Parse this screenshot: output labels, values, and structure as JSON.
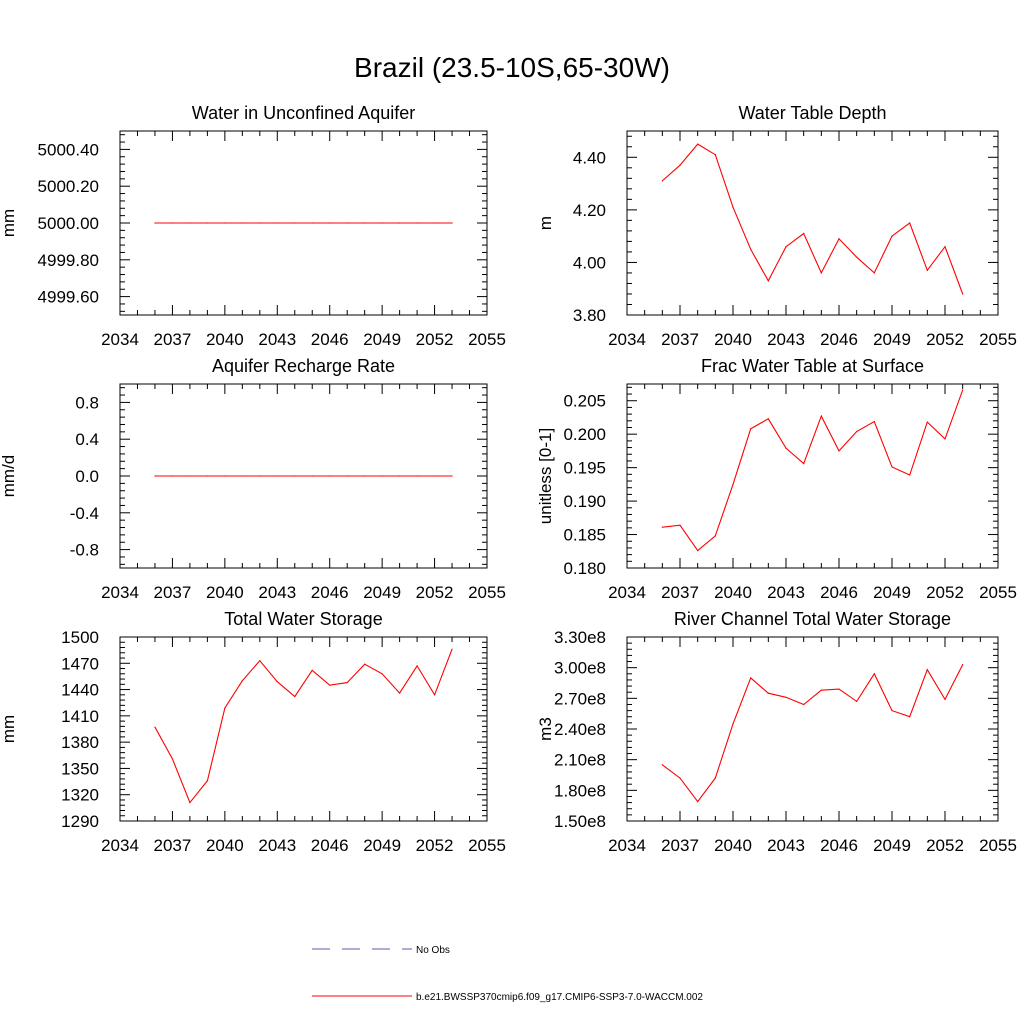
{
  "page_title": "Brazil (23.5-10S,65-30W)",
  "colors": {
    "model_line": "#ff0000",
    "obs_line": "#5a5aa8",
    "axis": "#000000"
  },
  "legend": {
    "entries": [
      {
        "label": "No Obs",
        "style": "dashed",
        "color": "#5a5aa8"
      },
      {
        "label": "b.e21.BWSSP370cmip6.f09_g17.CMIP6-SSP3-7.0-WACCM.002",
        "style": "solid",
        "color": "#ff0000"
      }
    ]
  },
  "chart_data": [
    {
      "type": "line",
      "title": "Water in Unconfined Aquifer",
      "ylabel": "mm",
      "xlim": [
        2034,
        2055
      ],
      "ylim": [
        4999.5,
        5000.5
      ],
      "xticks": [
        "2034",
        "2037",
        "2040",
        "2043",
        "2046",
        "2049",
        "2052",
        "2055"
      ],
      "yticks": [
        4999.6,
        4999.8,
        5000.0,
        5000.2,
        5000.4
      ],
      "ytick_labels": [
        "4999.60",
        "4999.80",
        "5000.00",
        "5000.20",
        "5000.40"
      ],
      "x": [
        2036,
        2037,
        2038,
        2039,
        2040,
        2041,
        2042,
        2043,
        2044,
        2045,
        2046,
        2047,
        2048,
        2049,
        2050,
        2051,
        2052,
        2053
      ],
      "series": [
        {
          "name": "b.e21.BWSSP370cmip6.f09_g17.CMIP6-SSP3-7.0-WACCM.002",
          "values": [
            5000,
            5000,
            5000,
            5000,
            5000,
            5000,
            5000,
            5000,
            5000,
            5000,
            5000,
            5000,
            5000,
            5000,
            5000,
            5000,
            5000,
            5000
          ]
        }
      ]
    },
    {
      "type": "line",
      "title": "Water Table Depth",
      "ylabel": "m",
      "xlim": [
        2034,
        2055
      ],
      "ylim": [
        3.8,
        4.5
      ],
      "xticks": [
        "2034",
        "2037",
        "2040",
        "2043",
        "2046",
        "2049",
        "2052",
        "2055"
      ],
      "yticks": [
        3.8,
        4.0,
        4.2,
        4.4
      ],
      "ytick_labels": [
        "3.80",
        "4.00",
        "4.20",
        "4.40"
      ],
      "x": [
        2036,
        2037,
        2038,
        2039,
        2040,
        2041,
        2042,
        2043,
        2044,
        2045,
        2046,
        2047,
        2048,
        2049,
        2050,
        2051,
        2052,
        2053
      ],
      "series": [
        {
          "name": "b.e21.BWSSP370cmip6.f09_g17.CMIP6-SSP3-7.0-WACCM.002",
          "values": [
            4.31,
            4.37,
            4.45,
            4.41,
            4.21,
            4.05,
            3.93,
            4.06,
            4.11,
            3.96,
            4.09,
            4.02,
            3.96,
            4.1,
            4.15,
            3.97,
            4.06,
            3.88
          ]
        }
      ]
    },
    {
      "type": "line",
      "title": "Aquifer Recharge Rate",
      "ylabel": "mm/d",
      "xlim": [
        2034,
        2055
      ],
      "ylim": [
        -1.0,
        1.0
      ],
      "xticks": [
        "2034",
        "2037",
        "2040",
        "2043",
        "2046",
        "2049",
        "2052",
        "2055"
      ],
      "yticks": [
        -0.8,
        -0.4,
        0.0,
        0.4,
        0.8
      ],
      "ytick_labels": [
        "-0.8",
        "-0.4",
        "0.0",
        "0.4",
        "0.8"
      ],
      "x": [
        2036,
        2037,
        2038,
        2039,
        2040,
        2041,
        2042,
        2043,
        2044,
        2045,
        2046,
        2047,
        2048,
        2049,
        2050,
        2051,
        2052,
        2053
      ],
      "series": [
        {
          "name": "b.e21.BWSSP370cmip6.f09_g17.CMIP6-SSP3-7.0-WACCM.002",
          "values": [
            0,
            0,
            0,
            0,
            0,
            0,
            0,
            0,
            0,
            0,
            0,
            0,
            0,
            0,
            0,
            0,
            0,
            0
          ]
        }
      ]
    },
    {
      "type": "line",
      "title": "Frac Water Table at Surface",
      "ylabel": "unitless [0-1]",
      "xlim": [
        2034,
        2055
      ],
      "ylim": [
        0.18,
        0.2075
      ],
      "xticks": [
        "2034",
        "2037",
        "2040",
        "2043",
        "2046",
        "2049",
        "2052",
        "2055"
      ],
      "yticks": [
        0.18,
        0.185,
        0.19,
        0.195,
        0.2,
        0.205
      ],
      "ytick_labels": [
        "0.180",
        "0.185",
        "0.190",
        "0.195",
        "0.200",
        "0.205"
      ],
      "x": [
        2036,
        2037,
        2038,
        2039,
        2040,
        2041,
        2042,
        2043,
        2044,
        2045,
        2046,
        2047,
        2048,
        2049,
        2050,
        2051,
        2052,
        2053
      ],
      "series": [
        {
          "name": "b.e21.BWSSP370cmip6.f09_g17.CMIP6-SSP3-7.0-WACCM.002",
          "values": [
            0.1861,
            0.1864,
            0.1826,
            0.1848,
            0.1925,
            0.2008,
            0.2023,
            0.1979,
            0.1956,
            0.2027,
            0.1975,
            0.2004,
            0.2019,
            0.1951,
            0.1939,
            0.2018,
            0.1993,
            0.2066
          ]
        }
      ]
    },
    {
      "type": "line",
      "title": "Total Water Storage",
      "ylabel": "mm",
      "xlim": [
        2034,
        2055
      ],
      "ylim": [
        1290,
        1500
      ],
      "xticks": [
        "2034",
        "2037",
        "2040",
        "2043",
        "2046",
        "2049",
        "2052",
        "2055"
      ],
      "yticks": [
        1290,
        1320,
        1350,
        1380,
        1410,
        1440,
        1470,
        1500
      ],
      "ytick_labels": [
        "1290",
        "1320",
        "1350",
        "1380",
        "1410",
        "1440",
        "1470",
        "1500"
      ],
      "x": [
        2036,
        2037,
        2038,
        2039,
        2040,
        2041,
        2042,
        2043,
        2044,
        2045,
        2046,
        2047,
        2048,
        2049,
        2050,
        2051,
        2052,
        2053
      ],
      "series": [
        {
          "name": "b.e21.BWSSP370cmip6.f09_g17.CMIP6-SSP3-7.0-WACCM.002",
          "values": [
            1397,
            1361,
            1311,
            1336,
            1419,
            1450,
            1473,
            1449,
            1432,
            1462,
            1445,
            1448,
            1469,
            1458,
            1436,
            1467,
            1434,
            1486
          ]
        }
      ]
    },
    {
      "type": "line",
      "title": "River Channel Total Water Storage",
      "ylabel": "m3",
      "xlim": [
        2034,
        2055
      ],
      "ylim": [
        150000000,
        330000000
      ],
      "xticks": [
        "2034",
        "2037",
        "2040",
        "2043",
        "2046",
        "2049",
        "2052",
        "2055"
      ],
      "yticks": [
        150000000,
        180000000,
        210000000,
        240000000,
        270000000,
        300000000,
        330000000
      ],
      "ytick_labels": [
        "1.50e8",
        "1.80e8",
        "2.10e8",
        "2.40e8",
        "2.70e8",
        "3.00e8",
        "3.30e8"
      ],
      "x": [
        2036,
        2037,
        2038,
        2039,
        2040,
        2041,
        2042,
        2043,
        2044,
        2045,
        2046,
        2047,
        2048,
        2049,
        2050,
        2051,
        2052,
        2053
      ],
      "series": [
        {
          "name": "b.e21.BWSSP370cmip6.f09_g17.CMIP6-SSP3-7.0-WACCM.002",
          "values": [
            205000000,
            192000000,
            169000000,
            192000000,
            245000000,
            290000000,
            275000000,
            271000000,
            264000000,
            278000000,
            279000000,
            267000000,
            294000000,
            258000000,
            252000000,
            298000000,
            269000000,
            303000000
          ]
        }
      ]
    }
  ]
}
